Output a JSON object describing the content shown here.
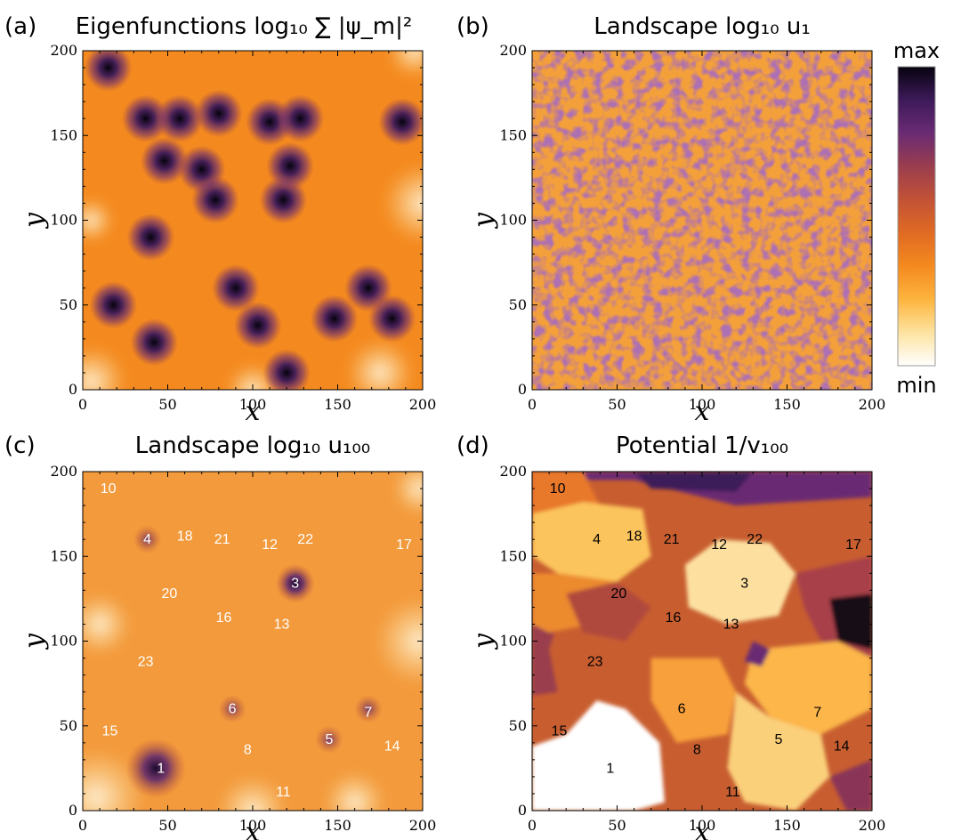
{
  "colors": {
    "colormap": [
      "#ffffff",
      "#fde3a0",
      "#fdb43e",
      "#f48a1f",
      "#e06a23",
      "#c25236",
      "#9a3d4e",
      "#6a2b73",
      "#3d1a5a",
      "#06030f"
    ],
    "light_marker": "#ffffff",
    "dark_marker": "#000000"
  },
  "colorbar": {
    "max_label": "max",
    "min_label": "min"
  },
  "chart_data": [
    {
      "type": "heatmap",
      "panel_label": "(a)",
      "title": "Eigenfunctions log₁₀ ∑ |ψ_m|²",
      "xlabel": "x",
      "ylabel": "y",
      "xlim": [
        0,
        200
      ],
      "ylim": [
        0,
        200
      ],
      "xticks": [
        "0",
        "50",
        "100",
        "150",
        "200"
      ],
      "yticks": [
        "0",
        "50",
        "100",
        "150",
        "200"
      ],
      "grid": false,
      "field": "sum of localized eigenfunction peaks",
      "peaks": [
        [
          15,
          190
        ],
        [
          37,
          160
        ],
        [
          57,
          160
        ],
        [
          80,
          163
        ],
        [
          110,
          158
        ],
        [
          128,
          160
        ],
        [
          48,
          135
        ],
        [
          70,
          130
        ],
        [
          78,
          112
        ],
        [
          118,
          112
        ],
        [
          122,
          132
        ],
        [
          40,
          90
        ],
        [
          18,
          50
        ],
        [
          42,
          28
        ],
        [
          90,
          60
        ],
        [
          103,
          38
        ],
        [
          120,
          10
        ],
        [
          148,
          42
        ],
        [
          168,
          60
        ],
        [
          182,
          42
        ],
        [
          188,
          158
        ]
      ],
      "labels": []
    },
    {
      "type": "heatmap",
      "panel_label": "(b)",
      "title": "Landscape log₁₀ u₁",
      "xlabel": "x",
      "ylabel": "y",
      "xlim": [
        0,
        200
      ],
      "ylim": [
        0,
        200
      ],
      "xticks": [
        "0",
        "50",
        "100",
        "150",
        "200"
      ],
      "yticks": [
        "0",
        "50",
        "100",
        "150",
        "200"
      ],
      "grid": false,
      "field": "fine-grained random disorder",
      "peaks": [],
      "labels": []
    },
    {
      "type": "heatmap",
      "panel_label": "(c)",
      "title": "Landscape log₁₀ u₁₀₀",
      "xlabel": "x",
      "ylabel": "y",
      "xlim": [
        0,
        200
      ],
      "ylim": [
        0,
        200
      ],
      "xticks": [
        "0",
        "50",
        "100",
        "150",
        "200"
      ],
      "yticks": [
        "0",
        "50",
        "100",
        "150",
        "200"
      ],
      "grid": false,
      "field": "smoothed landscape with local maxima",
      "peaks": [
        [
          43,
          25
        ],
        [
          125,
          134
        ],
        [
          38,
          160
        ],
        [
          88,
          60
        ],
        [
          145,
          42
        ],
        [
          168,
          60
        ]
      ],
      "labels": [
        {
          "text": "1",
          "x": 46,
          "y": 25
        },
        {
          "text": "3",
          "x": 125,
          "y": 134
        },
        {
          "text": "4",
          "x": 38,
          "y": 160
        },
        {
          "text": "5",
          "x": 145,
          "y": 42
        },
        {
          "text": "6",
          "x": 88,
          "y": 60
        },
        {
          "text": "7",
          "x": 168,
          "y": 58
        },
        {
          "text": "8",
          "x": 97,
          "y": 36
        },
        {
          "text": "10",
          "x": 15,
          "y": 190
        },
        {
          "text": "11",
          "x": 118,
          "y": 11
        },
        {
          "text": "12",
          "x": 110,
          "y": 157
        },
        {
          "text": "13",
          "x": 117,
          "y": 110
        },
        {
          "text": "14",
          "x": 182,
          "y": 38
        },
        {
          "text": "15",
          "x": 16,
          "y": 47
        },
        {
          "text": "16",
          "x": 83,
          "y": 114
        },
        {
          "text": "17",
          "x": 189,
          "y": 157
        },
        {
          "text": "18",
          "x": 60,
          "y": 162
        },
        {
          "text": "20",
          "x": 51,
          "y": 128
        },
        {
          "text": "21",
          "x": 82,
          "y": 160
        },
        {
          "text": "22",
          "x": 131,
          "y": 160
        },
        {
          "text": "23",
          "x": 37,
          "y": 88
        }
      ]
    },
    {
      "type": "heatmap",
      "panel_label": "(d)",
      "title": "Potential 1/v₁₀₀",
      "xlabel": "x",
      "ylabel": "y",
      "xlim": [
        0,
        200
      ],
      "ylim": [
        0,
        200
      ],
      "xticks": [
        "0",
        "50",
        "100",
        "150",
        "200"
      ],
      "yticks": [
        "0",
        "50",
        "100",
        "150",
        "200"
      ],
      "grid": false,
      "field": "piecewise-constant effective potential",
      "peaks": [],
      "labels": [
        {
          "text": "1",
          "x": 46,
          "y": 25
        },
        {
          "text": "3",
          "x": 125,
          "y": 134
        },
        {
          "text": "4",
          "x": 38,
          "y": 160
        },
        {
          "text": "5",
          "x": 145,
          "y": 42
        },
        {
          "text": "6",
          "x": 88,
          "y": 60
        },
        {
          "text": "7",
          "x": 168,
          "y": 58
        },
        {
          "text": "8",
          "x": 97,
          "y": 36
        },
        {
          "text": "10",
          "x": 15,
          "y": 190
        },
        {
          "text": "11",
          "x": 118,
          "y": 11
        },
        {
          "text": "12",
          "x": 110,
          "y": 157
        },
        {
          "text": "13",
          "x": 117,
          "y": 110
        },
        {
          "text": "14",
          "x": 182,
          "y": 38
        },
        {
          "text": "15",
          "x": 16,
          "y": 47
        },
        {
          "text": "16",
          "x": 83,
          "y": 114
        },
        {
          "text": "17",
          "x": 189,
          "y": 157
        },
        {
          "text": "18",
          "x": 60,
          "y": 162
        },
        {
          "text": "20",
          "x": 51,
          "y": 128
        },
        {
          "text": "21",
          "x": 82,
          "y": 160
        },
        {
          "text": "22",
          "x": 131,
          "y": 160
        },
        {
          "text": "23",
          "x": 37,
          "y": 88
        }
      ]
    }
  ]
}
